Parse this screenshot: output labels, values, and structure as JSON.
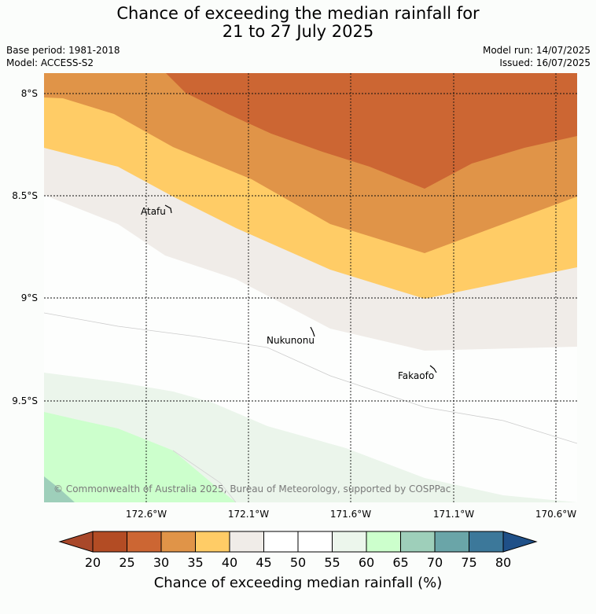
{
  "header": {
    "title_line1": "Chance of exceeding the median rainfall for",
    "title_line2": "21 to 27 July 2025",
    "base_period": "Base period: 1981-2018",
    "model": "Model: ACCESS-S2",
    "model_run": "Model run: 14/07/2025",
    "issued": "Issued: 16/07/2025"
  },
  "map": {
    "lat_ticks": [
      "8°S",
      "8.5°S",
      "9°S",
      "9.5°S"
    ],
    "lon_ticks": [
      "172.6°W",
      "172.1°W",
      "171.6°W",
      "171.1°W",
      "170.6°W"
    ],
    "places": [
      "Atafu",
      "Nukunonu",
      "Fakaofo"
    ],
    "copyright": "© Commonwealth of Australia 2025, Bureau of Meteorology, supported by COSPPac"
  },
  "legend": {
    "title": "Chance of exceeding median rainfall (%)",
    "ticks": [
      "20",
      "25",
      "30",
      "35",
      "40",
      "45",
      "50",
      "55",
      "60",
      "65",
      "70",
      "75",
      "80"
    ],
    "colors": [
      "#a9482a",
      "#b34c24",
      "#cc6633",
      "#e09448",
      "#ffcc66",
      "#f0ece8",
      "#ffffff",
      "#ffffff",
      "#ecf6ec",
      "#ccffcc",
      "#9ecfba",
      "#6aa5a8",
      "#3c789a",
      "#1f5088"
    ]
  }
}
